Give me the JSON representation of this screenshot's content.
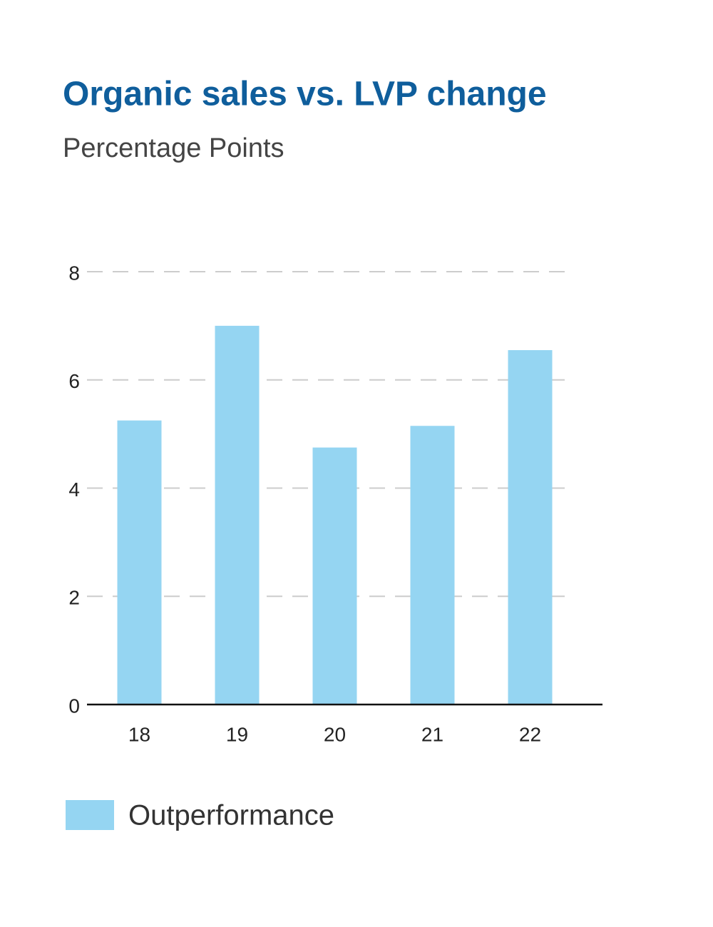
{
  "chart_data": {
    "type": "bar",
    "title": "Organic sales vs. LVP change",
    "subtitle": "Percentage Points",
    "categories": [
      "18",
      "19",
      "20",
      "21",
      "22"
    ],
    "series": [
      {
        "name": "Outperformance",
        "color": "#95d5f2",
        "values": [
          5.25,
          7.0,
          4.75,
          5.15,
          6.55
        ]
      }
    ],
    "ylim": [
      0,
      8
    ],
    "yticks": [
      0,
      2,
      4,
      6,
      8
    ],
    "grid": true
  }
}
